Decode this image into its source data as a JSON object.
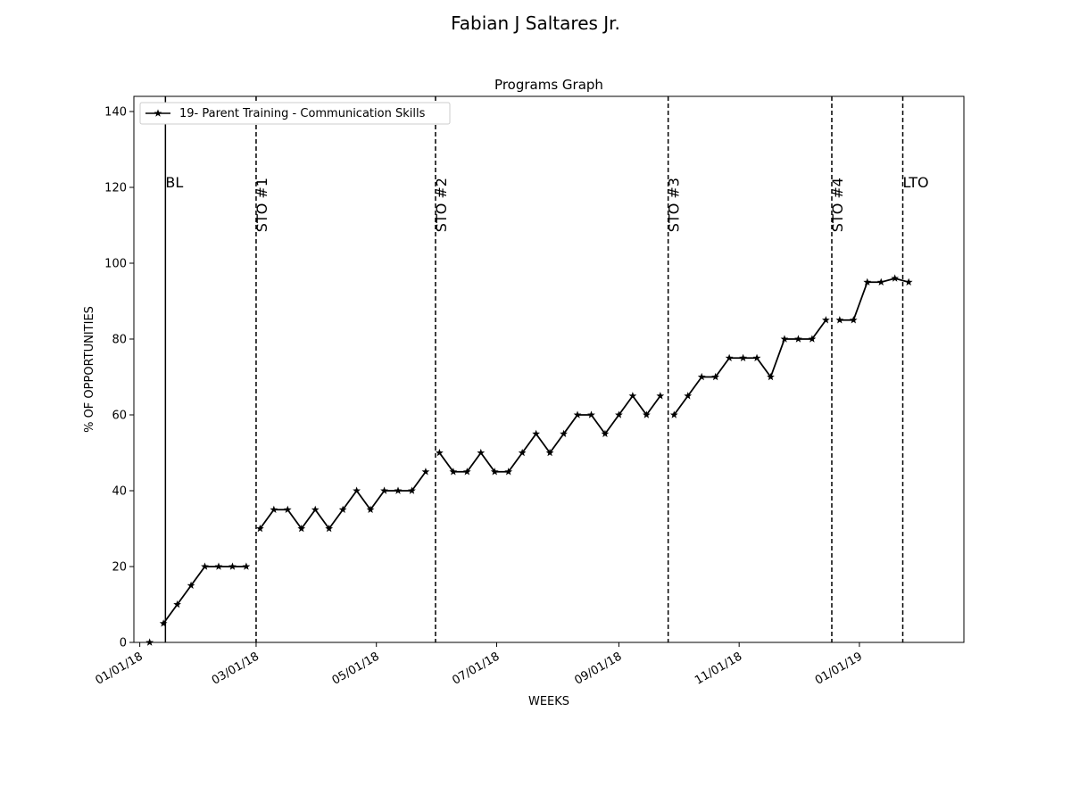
{
  "figure": {
    "suptitle": "Fabian J  Saltares Jr."
  },
  "chart_data": {
    "type": "line",
    "title": "Programs Graph",
    "xlabel": "WEEKS",
    "ylabel": "% OF OPPORTUNITIES",
    "x_axis_type": "date",
    "xlim": [
      "2017-12-29",
      "2019-02-23"
    ],
    "ylim": [
      0,
      144
    ],
    "y_ticks": [
      0,
      20,
      40,
      60,
      80,
      100,
      120,
      140
    ],
    "x_ticks": [
      {
        "date": "2018-01-01",
        "label": "01/01/18"
      },
      {
        "date": "2018-03-01",
        "label": "03/01/18"
      },
      {
        "date": "2018-05-01",
        "label": "05/01/18"
      },
      {
        "date": "2018-07-01",
        "label": "07/01/18"
      },
      {
        "date": "2018-09-01",
        "label": "09/01/18"
      },
      {
        "date": "2018-11-01",
        "label": "11/01/18"
      },
      {
        "date": "2019-01-01",
        "label": "01/01/19"
      }
    ],
    "grid": false,
    "legend_position": "top-left",
    "series": [
      {
        "name": "19- Parent Training - Communication Skills",
        "color": "#000000",
        "marker": "star",
        "segments": [
          {
            "x": [
              "2018-01-06"
            ],
            "y": [
              0
            ]
          },
          {
            "x": [
              "2018-01-13",
              "2018-01-20",
              "2018-01-27",
              "2018-02-03",
              "2018-02-10",
              "2018-02-17",
              "2018-02-24"
            ],
            "y": [
              5,
              10,
              15,
              20,
              20,
              20,
              20
            ]
          },
          {
            "x": [
              "2018-03-03",
              "2018-03-10",
              "2018-03-17",
              "2018-03-24",
              "2018-03-31",
              "2018-04-07",
              "2018-04-14",
              "2018-04-21",
              "2018-04-28",
              "2018-05-05",
              "2018-05-12",
              "2018-05-19",
              "2018-05-26"
            ],
            "y": [
              30,
              35,
              35,
              30,
              35,
              30,
              35,
              40,
              35,
              40,
              40,
              40,
              45
            ]
          },
          {
            "x": [
              "2018-06-02",
              "2018-06-09",
              "2018-06-16",
              "2018-06-23",
              "2018-06-30",
              "2018-07-07",
              "2018-07-14",
              "2018-07-21",
              "2018-07-28",
              "2018-08-04",
              "2018-08-11",
              "2018-08-18",
              "2018-08-25",
              "2018-09-01",
              "2018-09-08",
              "2018-09-15",
              "2018-09-22"
            ],
            "y": [
              50,
              45,
              45,
              50,
              45,
              45,
              50,
              55,
              50,
              55,
              60,
              60,
              55,
              60,
              65,
              60,
              65
            ]
          },
          {
            "x": [
              "2018-09-29",
              "2018-10-06",
              "2018-10-13",
              "2018-10-20",
              "2018-10-27",
              "2018-11-03",
              "2018-11-10",
              "2018-11-17",
              "2018-11-24",
              "2018-12-01",
              "2018-12-08",
              "2018-12-15"
            ],
            "y": [
              60,
              65,
              70,
              70,
              75,
              75,
              75,
              70,
              80,
              80,
              80,
              85
            ]
          },
          {
            "x": [
              "2018-12-22",
              "2018-12-29",
              "2019-01-05",
              "2019-01-12",
              "2019-01-19",
              "2019-01-26"
            ],
            "y": [
              85,
              85,
              95,
              95,
              96,
              95
            ]
          }
        ]
      }
    ],
    "phase_lines": [
      {
        "date": "2018-01-14",
        "label": "BL",
        "style": "solid",
        "rotated": false
      },
      {
        "date": "2018-03-01",
        "label": "STO #1",
        "style": "dashed",
        "rotated": true
      },
      {
        "date": "2018-05-31",
        "label": "STO #2",
        "style": "dashed",
        "rotated": true
      },
      {
        "date": "2018-09-26",
        "label": "STO #3",
        "style": "dashed",
        "rotated": true
      },
      {
        "date": "2018-12-18",
        "label": "STO #4",
        "style": "dashed",
        "rotated": true
      },
      {
        "date": "2019-01-23",
        "label": "LTO",
        "style": "dashed",
        "rotated": false
      }
    ]
  }
}
